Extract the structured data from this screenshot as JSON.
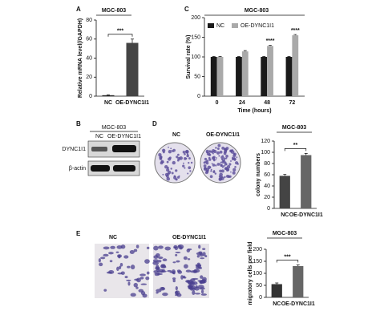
{
  "chart_data": [
    {
      "type": "bar",
      "panel": "A",
      "title": "MGC-803",
      "ylabel": "Relative mRNA level(/GAPDH)",
      "categories": [
        "NC",
        "OE-DYNC1I1"
      ],
      "values": [
        1,
        56
      ],
      "errors": [
        0.5,
        4
      ],
      "colors": [
        "#222222",
        "#444444"
      ],
      "ylim": [
        0,
        80
      ],
      "yticks": [
        0,
        20,
        40,
        60,
        80
      ],
      "significance": "***"
    },
    {
      "type": "grouped-bar",
      "panel": "C",
      "title": "MGC-803",
      "ylabel": "Survival rate (%)",
      "xlabel": "Time (hours)",
      "categories": [
        "0",
        "24",
        "48",
        "72"
      ],
      "series": [
        {
          "name": "NC",
          "color": "#1a1a1a",
          "values": [
            100,
            100,
            100,
            100
          ],
          "errors": [
            1,
            1,
            1,
            1
          ],
          "significance": [
            null,
            null,
            null,
            null
          ]
        },
        {
          "name": "OE-DYNC1I1",
          "color": "#aaaaaa",
          "values": [
            100,
            114,
            128,
            155
          ],
          "errors": [
            1,
            2,
            2,
            2
          ],
          "significance": [
            null,
            null,
            "****",
            "****"
          ]
        }
      ],
      "ylim": [
        0,
        200
      ],
      "yticks": [
        0,
        50,
        100,
        150,
        200
      ],
      "legend": "upper left"
    },
    {
      "type": "bar",
      "panel": "D",
      "title": "MGC-803",
      "ylabel": "colony numbers",
      "categories": [
        "NC",
        "OE-DYNC1I1"
      ],
      "values": [
        58,
        95
      ],
      "errors": [
        3,
        3
      ],
      "colors": [
        "#444444",
        "#666666"
      ],
      "ylim": [
        0,
        120
      ],
      "yticks": [
        0,
        20,
        40,
        60,
        80,
        100,
        120
      ],
      "significance": "**"
    },
    {
      "type": "bar",
      "panel": "E",
      "title": "MGC-803",
      "ylabel": "migratory cells per field",
      "categories": [
        "NC",
        "OE-DYNC1I1"
      ],
      "values": [
        55,
        130
      ],
      "errors": [
        5,
        5
      ],
      "colors": [
        "#333333",
        "#666666"
      ],
      "ylim": [
        0,
        200
      ],
      "yticks": [
        0,
        50,
        100,
        150,
        200
      ],
      "significance": "***"
    }
  ],
  "blot": {
    "panel": "B",
    "title": "MGC-803",
    "lanes": [
      "NC",
      "OE-DYNC1I1"
    ],
    "rows": [
      "DYNC1I1",
      "β-actin"
    ]
  },
  "colony": {
    "labels": [
      "NC",
      "OE-DYNC1I1"
    ]
  },
  "migration": {
    "labels": [
      "NC",
      "OE-DYNC1I1"
    ]
  }
}
